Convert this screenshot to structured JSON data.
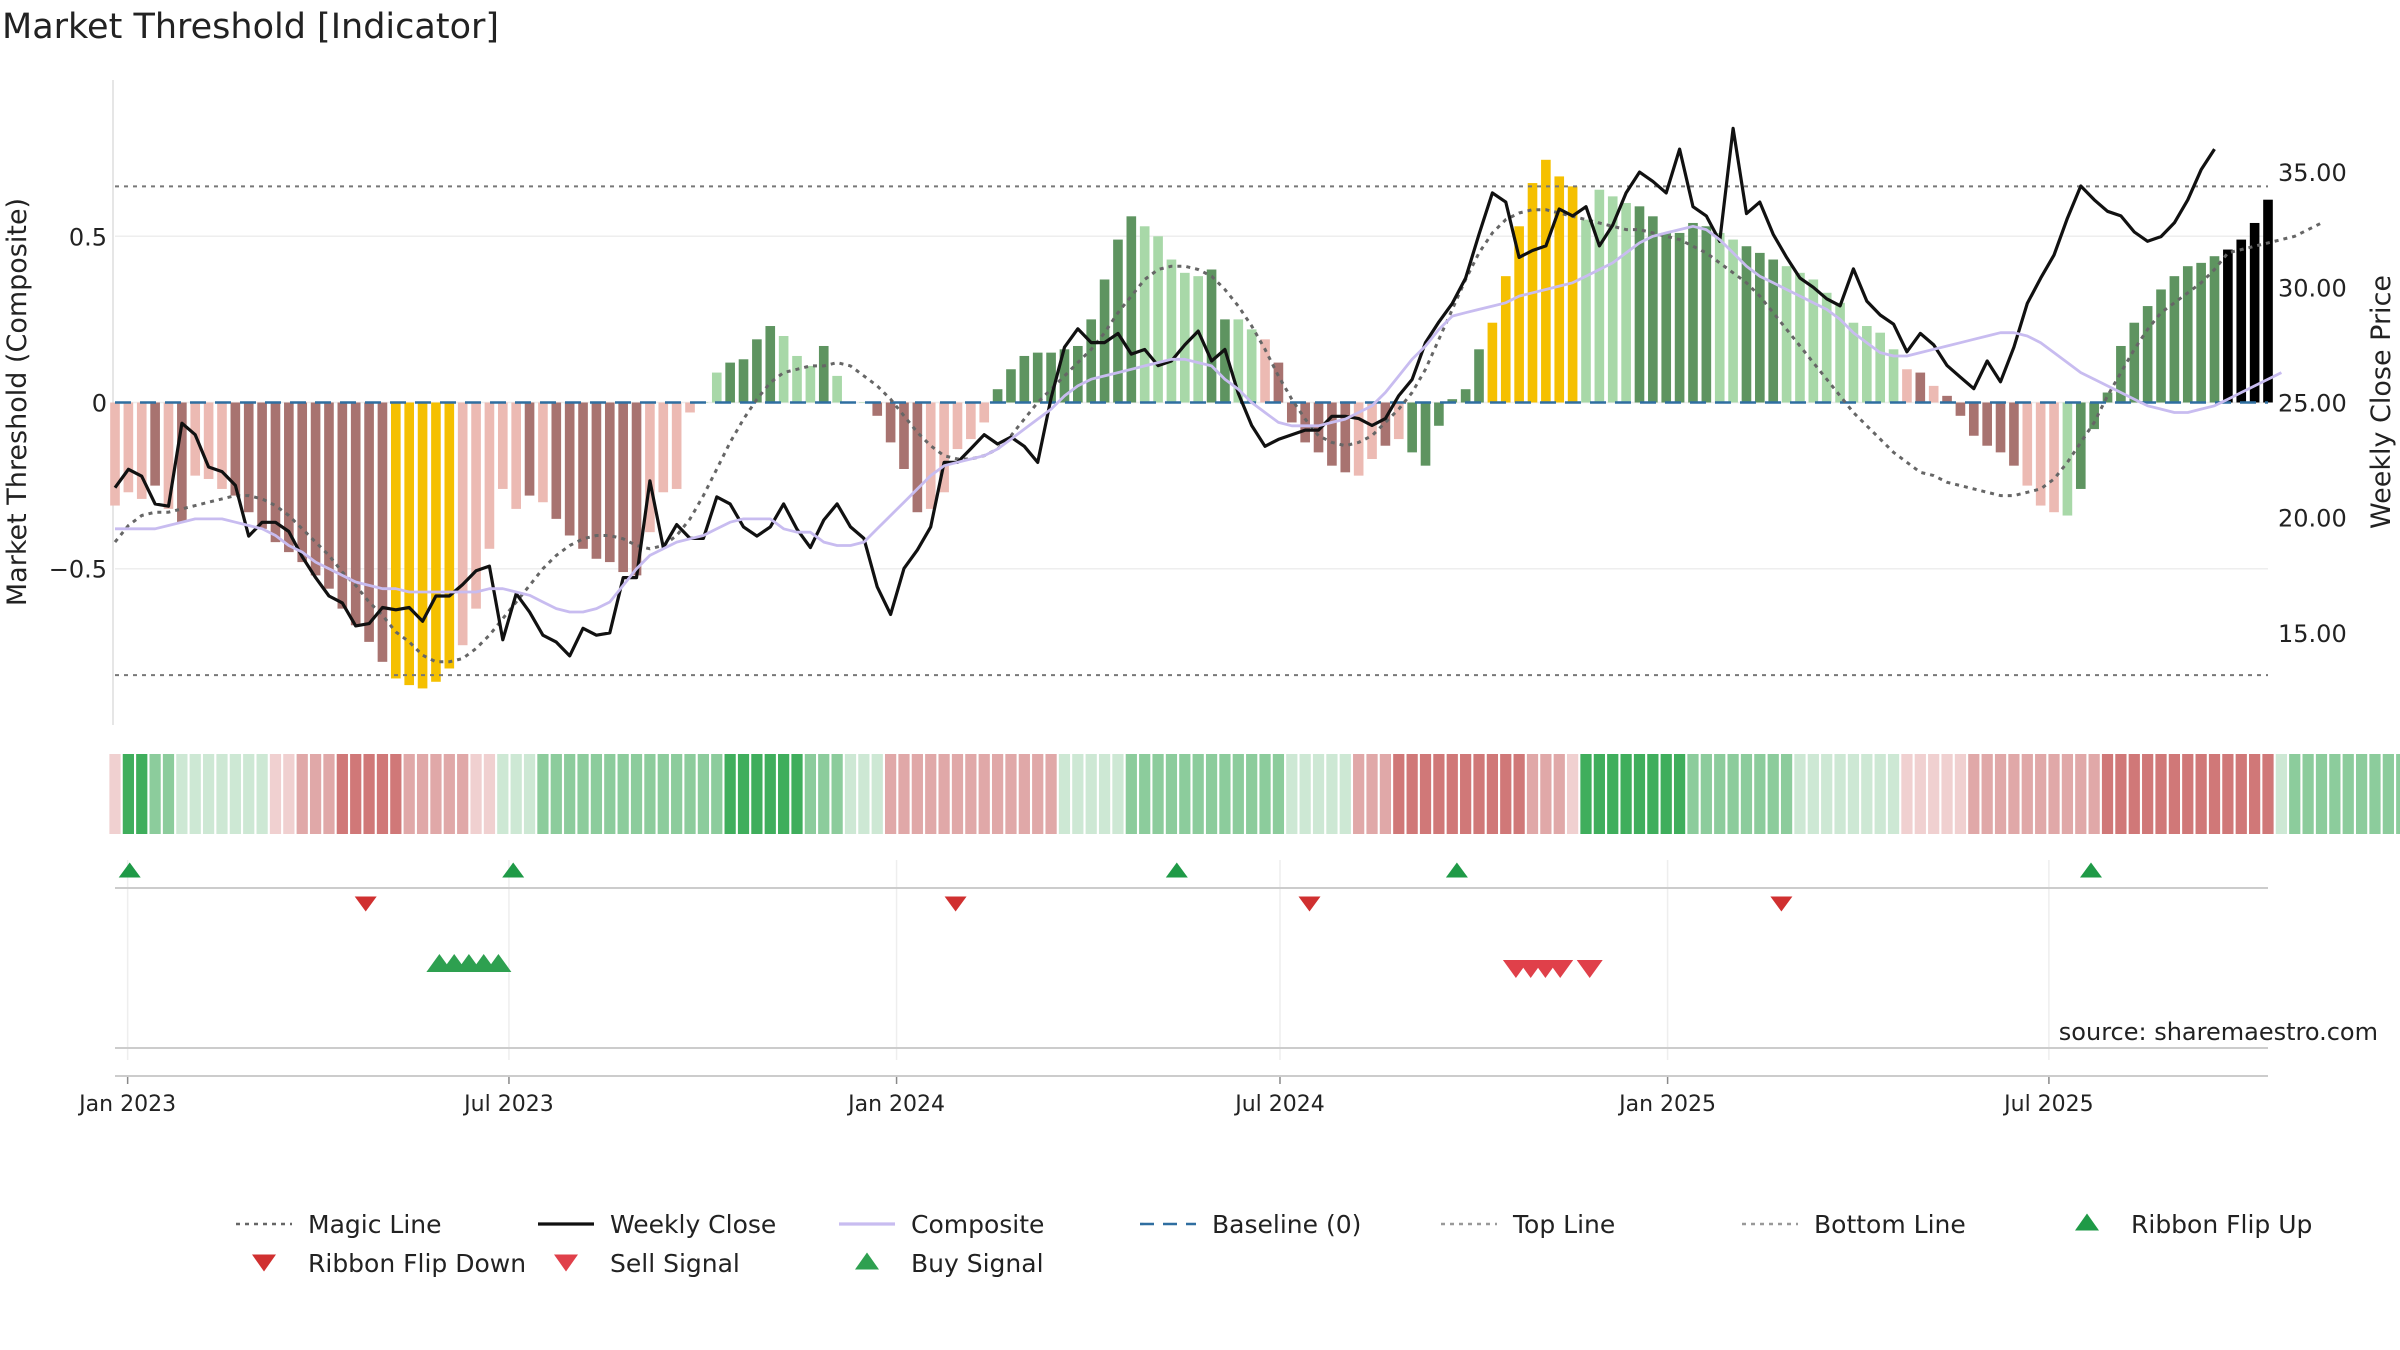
{
  "title": "Market Threshold [Indicator]",
  "source": "source: sharemaestro.com",
  "chart_data": {
    "type": "bar",
    "title": "Market Threshold [Indicator]",
    "ylabel_left": "Market Threshold (Composite)",
    "ylabel_right": "Weekly Close Price",
    "ylim_left": [
      -0.97,
      0.97
    ],
    "ylim_right": [
      11.0,
      39.0
    ],
    "left_ticks": [
      {
        "v": 0.5,
        "label": "0.5"
      },
      {
        "v": 0,
        "label": "0"
      },
      {
        "v": -0.5,
        "label": "−0.5"
      }
    ],
    "right_ticks": [
      {
        "v": 35,
        "label": "35.00"
      },
      {
        "v": 30,
        "label": "30.00"
      },
      {
        "v": 25,
        "label": "25.00"
      },
      {
        "v": 20,
        "label": "20.00"
      },
      {
        "v": 15,
        "label": "15.00"
      }
    ],
    "x_start": "2022-12-26",
    "x_end": "2025-10-13",
    "x_ticks": [
      {
        "date": "2023-01-01",
        "label": "Jan 2023"
      },
      {
        "date": "2023-07-01",
        "label": "Jul 2023"
      },
      {
        "date": "2024-01-01",
        "label": "Jan 2024"
      },
      {
        "date": "2024-07-01",
        "label": "Jul 2024"
      },
      {
        "date": "2025-01-01",
        "label": "Jan 2025"
      },
      {
        "date": "2025-07-01",
        "label": "Jul 2025"
      }
    ],
    "top_line": 0.65,
    "bottom_line": -0.82,
    "baseline": 0,
    "composite_bars": [
      -0.31,
      -0.27,
      -0.29,
      -0.25,
      -0.32,
      -0.36,
      -0.22,
      -0.23,
      -0.26,
      -0.28,
      -0.33,
      -0.38,
      -0.42,
      -0.45,
      -0.48,
      -0.52,
      -0.56,
      -0.62,
      -0.67,
      -0.72,
      -0.78,
      -0.83,
      -0.85,
      -0.86,
      -0.84,
      -0.8,
      -0.73,
      -0.62,
      -0.44,
      -0.26,
      -0.32,
      -0.28,
      -0.3,
      -0.35,
      -0.4,
      -0.44,
      -0.47,
      -0.48,
      -0.51,
      -0.52,
      -0.39,
      -0.27,
      -0.26,
      -0.03,
      0.0,
      0.09,
      0.12,
      0.13,
      0.19,
      0.23,
      0.2,
      0.14,
      0.11,
      0.17,
      0.08,
      0.0,
      0.0,
      -0.04,
      -0.12,
      -0.2,
      -0.33,
      -0.32,
      -0.27,
      -0.14,
      -0.11,
      -0.06,
      0.04,
      0.1,
      0.14,
      0.15,
      0.15,
      0.16,
      0.17,
      0.25,
      0.37,
      0.49,
      0.56,
      0.53,
      0.5,
      0.43,
      0.39,
      0.38,
      0.4,
      0.25,
      0.25,
      0.22,
      0.19,
      0.12,
      -0.06,
      -0.12,
      -0.15,
      -0.19,
      -0.21,
      -0.22,
      -0.17,
      -0.13,
      -0.11,
      -0.15,
      -0.19,
      -0.07,
      0.01,
      0.04,
      0.16,
      0.24,
      0.38,
      0.53,
      0.66,
      0.73,
      0.68,
      0.65,
      0.55,
      0.64,
      0.62,
      0.6,
      0.59,
      0.56,
      0.51,
      0.51,
      0.54,
      0.53,
      0.51,
      0.49,
      0.47,
      0.45,
      0.43,
      0.41,
      0.39,
      0.37,
      0.33,
      0.3,
      0.24,
      0.23,
      0.21,
      0.16,
      0.1,
      0.09,
      0.05,
      0.02,
      -0.04,
      -0.1,
      -0.13,
      -0.15,
      -0.19,
      -0.25,
      -0.31,
      -0.33,
      -0.34,
      -0.26,
      -0.08,
      0.03,
      0.17,
      0.24,
      0.29,
      0.34,
      0.38,
      0.41,
      0.42,
      0.44,
      0.46,
      0.49,
      0.54,
      0.61
    ],
    "bar_color_key": "0 light-red, 1 dark-red, 2 light-green, 3 dark-green, 4 gold",
    "bar_colors": [
      0,
      0,
      0,
      1,
      0,
      1,
      0,
      0,
      0,
      1,
      1,
      1,
      1,
      1,
      1,
      1,
      1,
      1,
      1,
      1,
      1,
      4,
      4,
      4,
      4,
      4,
      0,
      0,
      0,
      0,
      0,
      1,
      0,
      1,
      1,
      1,
      1,
      1,
      1,
      1,
      0,
      0,
      0,
      0,
      2,
      2,
      3,
      3,
      3,
      3,
      2,
      2,
      2,
      3,
      2,
      2,
      2,
      1,
      1,
      1,
      1,
      0,
      0,
      0,
      0,
      0,
      3,
      3,
      3,
      3,
      3,
      3,
      3,
      3,
      3,
      3,
      3,
      2,
      2,
      2,
      2,
      2,
      3,
      3,
      2,
      2,
      0,
      1,
      1,
      1,
      1,
      1,
      1,
      0,
      0,
      1,
      0,
      3,
      3,
      3,
      3,
      3,
      3,
      4,
      4,
      4,
      4,
      4,
      4,
      4,
      2,
      2,
      2,
      2,
      3,
      3,
      3,
      3,
      3,
      3,
      2,
      2,
      3,
      3,
      3,
      2,
      2,
      2,
      2,
      2,
      2,
      2,
      2,
      2,
      0,
      1,
      0,
      1,
      1,
      1,
      1,
      1,
      1,
      0,
      0,
      0,
      2,
      3,
      3,
      3,
      3,
      3,
      3,
      3,
      3,
      3,
      3,
      3
    ],
    "series": [
      {
        "name": "Magic Line",
        "style": "dotted",
        "color": "#666666",
        "axis": "left",
        "values": [
          -0.42,
          -0.37,
          -0.34,
          -0.33,
          -0.33,
          -0.32,
          -0.31,
          -0.3,
          -0.29,
          -0.28,
          -0.28,
          -0.29,
          -0.31,
          -0.34,
          -0.38,
          -0.42,
          -0.46,
          -0.51,
          -0.55,
          -0.6,
          -0.64,
          -0.69,
          -0.72,
          -0.76,
          -0.78,
          -0.78,
          -0.77,
          -0.74,
          -0.7,
          -0.65,
          -0.6,
          -0.55,
          -0.5,
          -0.46,
          -0.43,
          -0.41,
          -0.4,
          -0.4,
          -0.41,
          -0.43,
          -0.44,
          -0.43,
          -0.4,
          -0.35,
          -0.28,
          -0.2,
          -0.12,
          -0.05,
          0.01,
          0.06,
          0.09,
          0.1,
          0.11,
          0.11,
          0.12,
          0.11,
          0.08,
          0.05,
          0.01,
          -0.04,
          -0.09,
          -0.13,
          -0.16,
          -0.17,
          -0.17,
          -0.16,
          -0.14,
          -0.1,
          -0.05,
          0.0,
          0.04,
          0.08,
          0.12,
          0.16,
          0.21,
          0.27,
          0.32,
          0.37,
          0.4,
          0.41,
          0.41,
          0.4,
          0.38,
          0.34,
          0.29,
          0.23,
          0.16,
          0.08,
          0.01,
          -0.05,
          -0.1,
          -0.12,
          -0.13,
          -0.12,
          -0.1,
          -0.06,
          -0.02,
          0.03,
          0.1,
          0.19,
          0.28,
          0.37,
          0.45,
          0.51,
          0.55,
          0.57,
          0.58,
          0.58,
          0.57,
          0.56,
          0.55,
          0.54,
          0.53,
          0.52,
          0.52,
          0.51,
          0.5,
          0.49,
          0.47,
          0.45,
          0.42,
          0.39,
          0.36,
          0.32,
          0.27,
          0.22,
          0.17,
          0.12,
          0.07,
          0.02,
          -0.03,
          -0.07,
          -0.11,
          -0.15,
          -0.18,
          -0.21,
          -0.22,
          -0.24,
          -0.25,
          -0.26,
          -0.27,
          -0.28,
          -0.28,
          -0.27,
          -0.26,
          -0.23,
          -0.18,
          -0.12,
          -0.06,
          0.02,
          0.09,
          0.16,
          0.22,
          0.27,
          0.3,
          0.33,
          0.36,
          0.4,
          0.45,
          0.46,
          0.47,
          0.48,
          0.49,
          0.5,
          0.52,
          0.54
        ]
      },
      {
        "name": "Weekly Close",
        "style": "solid",
        "color": "#111111",
        "axis": "right",
        "values": [
          21.3,
          22.1,
          21.8,
          20.6,
          20.5,
          24.1,
          23.6,
          22.2,
          22.0,
          21.4,
          19.2,
          19.8,
          19.8,
          19.4,
          18.3,
          17.4,
          16.6,
          16.3,
          15.3,
          15.4,
          16.1,
          16.0,
          16.1,
          15.5,
          16.6,
          16.6,
          17.1,
          17.7,
          17.9,
          14.7,
          16.7,
          15.9,
          14.9,
          14.6,
          14.0,
          15.2,
          14.9,
          15.0,
          17.4,
          17.4,
          21.6,
          18.7,
          19.7,
          19.1,
          19.1,
          20.9,
          20.6,
          19.6,
          19.2,
          19.6,
          20.6,
          19.5,
          18.7,
          19.9,
          20.6,
          19.6,
          19.1,
          17.0,
          15.8,
          17.8,
          18.6,
          19.6,
          22.4,
          22.4,
          23.0,
          23.6,
          23.2,
          23.5,
          23.1,
          22.4,
          25.2,
          27.4,
          28.2,
          27.6,
          27.6,
          28.0,
          27.1,
          27.3,
          26.6,
          26.8,
          27.5,
          28.1,
          26.8,
          27.3,
          25.4,
          24.0,
          23.1,
          23.4,
          23.6,
          23.8,
          23.8,
          24.4,
          24.4,
          24.3,
          24.0,
          24.3,
          25.3,
          26.0,
          27.6,
          28.5,
          29.3,
          30.4,
          32.3,
          34.1,
          33.7,
          31.3,
          31.6,
          31.8,
          33.4,
          33.1,
          33.5,
          31.8,
          32.7,
          34.1,
          35.0,
          34.6,
          34.1,
          36.0,
          33.5,
          33.1,
          32.0,
          36.9,
          33.2,
          33.7,
          32.3,
          31.3,
          30.4,
          30.0,
          29.5,
          29.2,
          30.8,
          29.4,
          28.8,
          28.4,
          27.2,
          28.0,
          27.5,
          26.6,
          26.1,
          25.6,
          26.8,
          25.9,
          27.4,
          29.3,
          30.4,
          31.4,
          33.0,
          34.4,
          33.8,
          33.3,
          33.1,
          32.4,
          32.0,
          32.2,
          32.8,
          33.8,
          35.1,
          36.0
        ]
      },
      {
        "name": "Composite",
        "style": "solid",
        "color": "#c8bcf0",
        "axis": "left",
        "values": [
          -0.38,
          -0.38,
          -0.38,
          -0.38,
          -0.37,
          -0.36,
          -0.35,
          -0.35,
          -0.35,
          -0.36,
          -0.37,
          -0.38,
          -0.4,
          -0.43,
          -0.45,
          -0.48,
          -0.5,
          -0.52,
          -0.54,
          -0.55,
          -0.56,
          -0.56,
          -0.57,
          -0.57,
          -0.57,
          -0.57,
          -0.57,
          -0.57,
          -0.56,
          -0.56,
          -0.57,
          -0.58,
          -0.6,
          -0.62,
          -0.63,
          -0.63,
          -0.62,
          -0.6,
          -0.55,
          -0.5,
          -0.46,
          -0.44,
          -0.42,
          -0.41,
          -0.4,
          -0.38,
          -0.36,
          -0.35,
          -0.35,
          -0.35,
          -0.38,
          -0.39,
          -0.39,
          -0.42,
          -0.43,
          -0.43,
          -0.42,
          -0.38,
          -0.34,
          -0.3,
          -0.26,
          -0.22,
          -0.19,
          -0.18,
          -0.17,
          -0.16,
          -0.14,
          -0.11,
          -0.08,
          -0.05,
          -0.02,
          0.02,
          0.05,
          0.07,
          0.08,
          0.09,
          0.1,
          0.11,
          0.12,
          0.13,
          0.13,
          0.12,
          0.11,
          0.07,
          0.04,
          0.0,
          -0.03,
          -0.06,
          -0.07,
          -0.07,
          -0.07,
          -0.06,
          -0.05,
          -0.03,
          -0.01,
          0.03,
          0.08,
          0.13,
          0.17,
          0.22,
          0.26,
          0.27,
          0.28,
          0.29,
          0.3,
          0.32,
          0.33,
          0.34,
          0.35,
          0.36,
          0.38,
          0.4,
          0.42,
          0.45,
          0.48,
          0.5,
          0.51,
          0.52,
          0.53,
          0.52,
          0.49,
          0.45,
          0.41,
          0.38,
          0.36,
          0.34,
          0.32,
          0.3,
          0.28,
          0.25,
          0.21,
          0.18,
          0.15,
          0.14,
          0.14,
          0.15,
          0.16,
          0.17,
          0.18,
          0.19,
          0.2,
          0.21,
          0.21,
          0.2,
          0.18,
          0.15,
          0.12,
          0.09,
          0.07,
          0.05,
          0.03,
          0.01,
          -0.01,
          -0.02,
          -0.03,
          -0.03,
          -0.02,
          -0.01,
          0.01,
          0.03,
          0.05,
          0.07,
          0.09
        ]
      }
    ],
    "baseline_series": {
      "name": "Baseline (0)",
      "style": "dashed",
      "color": "#2f6ea0"
    },
    "ribbon_key": "0 light-red, 1 mid-red, 2 strong-red, 3 light-green, 4 mid-green, 5 strong-green",
    "ribbon_colors": [
      0,
      5,
      5,
      4,
      4,
      3,
      3,
      3,
      3,
      3,
      3,
      3,
      0,
      0,
      1,
      1,
      1,
      2,
      2,
      2,
      2,
      2,
      1,
      1,
      1,
      1,
      1,
      0,
      0,
      3,
      3,
      3,
      4,
      4,
      4,
      4,
      4,
      4,
      4,
      4,
      4,
      4,
      4,
      4,
      4,
      4,
      5,
      5,
      5,
      5,
      5,
      5,
      4,
      4,
      4,
      3,
      3,
      3,
      1,
      1,
      1,
      1,
      1,
      1,
      1,
      1,
      1,
      1,
      1,
      1,
      1,
      3,
      3,
      3,
      3,
      3,
      4,
      4,
      4,
      4,
      4,
      4,
      4,
      4,
      4,
      4,
      4,
      4,
      3,
      3,
      3,
      3,
      3,
      1,
      1,
      1,
      2,
      2,
      2,
      2,
      2,
      2,
      2,
      2,
      2,
      2,
      1,
      1,
      1,
      0,
      5,
      5,
      5,
      5,
      5,
      5,
      5,
      5,
      4,
      4,
      4,
      4,
      4,
      4,
      4,
      4,
      3,
      3,
      3,
      3,
      3,
      3,
      3,
      3,
      0,
      0,
      0,
      0,
      0,
      1,
      1,
      1,
      1,
      1,
      1,
      1,
      1,
      1,
      1,
      2,
      2,
      2,
      2,
      2,
      2,
      2,
      2,
      2,
      2,
      2,
      2,
      2,
      3,
      4,
      4,
      4,
      4,
      4,
      4,
      4,
      4,
      4,
      4,
      4
    ],
    "ribbon_flip_up": [
      "2023-01-02",
      "2023-07-03",
      "2024-05-13",
      "2024-09-23",
      "2025-07-21"
    ],
    "ribbon_flip_down": [
      "2023-04-24",
      "2024-01-29",
      "2024-07-15",
      "2025-02-24"
    ],
    "buy_signals": [
      "2023-05-29",
      "2023-06-05",
      "2023-06-12",
      "2023-06-19",
      "2023-06-26"
    ],
    "sell_signals": [
      "2024-10-21",
      "2024-10-28",
      "2024-11-04",
      "2024-11-11",
      "2024-11-25"
    ],
    "legend": [
      {
        "label": "Magic Line",
        "kind": "dotted",
        "color": "#666666"
      },
      {
        "label": "Weekly Close",
        "kind": "solid",
        "color": "#111111"
      },
      {
        "label": "Composite",
        "kind": "solid",
        "color": "#c8bcf0"
      },
      {
        "label": "Baseline (0)",
        "kind": "dashed",
        "color": "#2f6ea0"
      },
      {
        "label": "Top Line",
        "kind": "dotted",
        "color": "#999999"
      },
      {
        "label": "Bottom Line",
        "kind": "dotted",
        "color": "#999999"
      },
      {
        "label": "Ribbon Flip Up",
        "kind": "tri-up",
        "color": "#1f9a47"
      },
      {
        "label": "Ribbon Flip Down",
        "kind": "tri-down",
        "color": "#d03030"
      },
      {
        "label": "Sell Signal",
        "kind": "tri-down",
        "color": "#e0404a"
      },
      {
        "label": "Buy Signal",
        "kind": "tri-up",
        "color": "#2ea050"
      }
    ],
    "legend_placement": "bottom",
    "grid": true
  },
  "colors": {
    "bar_light_red": "#ecbab3",
    "bar_dark_red": "#a87370",
    "bar_light_green": "#a8d8a8",
    "bar_dark_green": "#5e9460",
    "bar_gold": "#f5c000",
    "ribbon_red": [
      "#f0d0d0",
      "#e0a8a8",
      "#d07878"
    ],
    "ribbon_green": [
      "#cde8d4",
      "#8ccc9c",
      "#3fae5c"
    ]
  }
}
